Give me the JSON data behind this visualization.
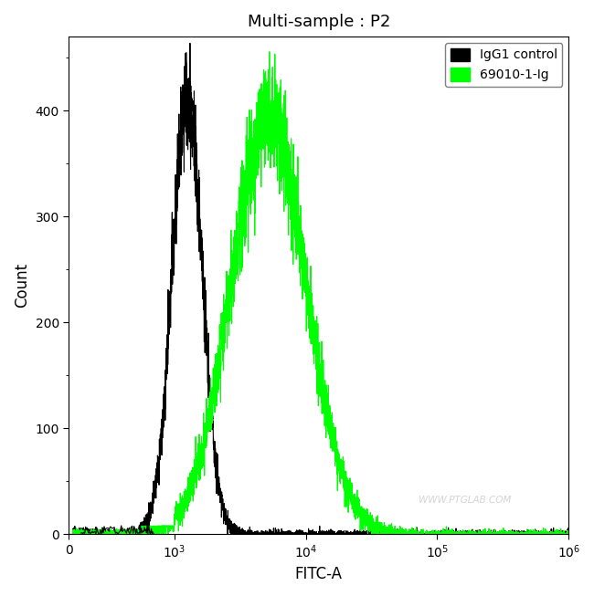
{
  "title": "Multi-sample : P2",
  "xlabel": "FITC-A",
  "ylabel": "Count",
  "ylim": [
    0,
    470
  ],
  "yticks": [
    0,
    100,
    200,
    300,
    400
  ],
  "xlim_left": 0,
  "xlim_right": 1000000,
  "linthresh": 300,
  "linscale": 0.25,
  "legend_labels": [
    "IgG1 control",
    "69010-1-Ig"
  ],
  "legend_colors": [
    "black",
    "#00ff00"
  ],
  "watermark": "WWW.PTGLAB.COM",
  "black_peak_log": 3.1,
  "black_peak_height": 410,
  "black_sigma_log": 0.115,
  "green_peak_log": 3.72,
  "green_peak_height": 393,
  "green_sigma_log": 0.285,
  "background_color": "#ffffff",
  "noise_seed_black": 42,
  "noise_seed_green": 7
}
